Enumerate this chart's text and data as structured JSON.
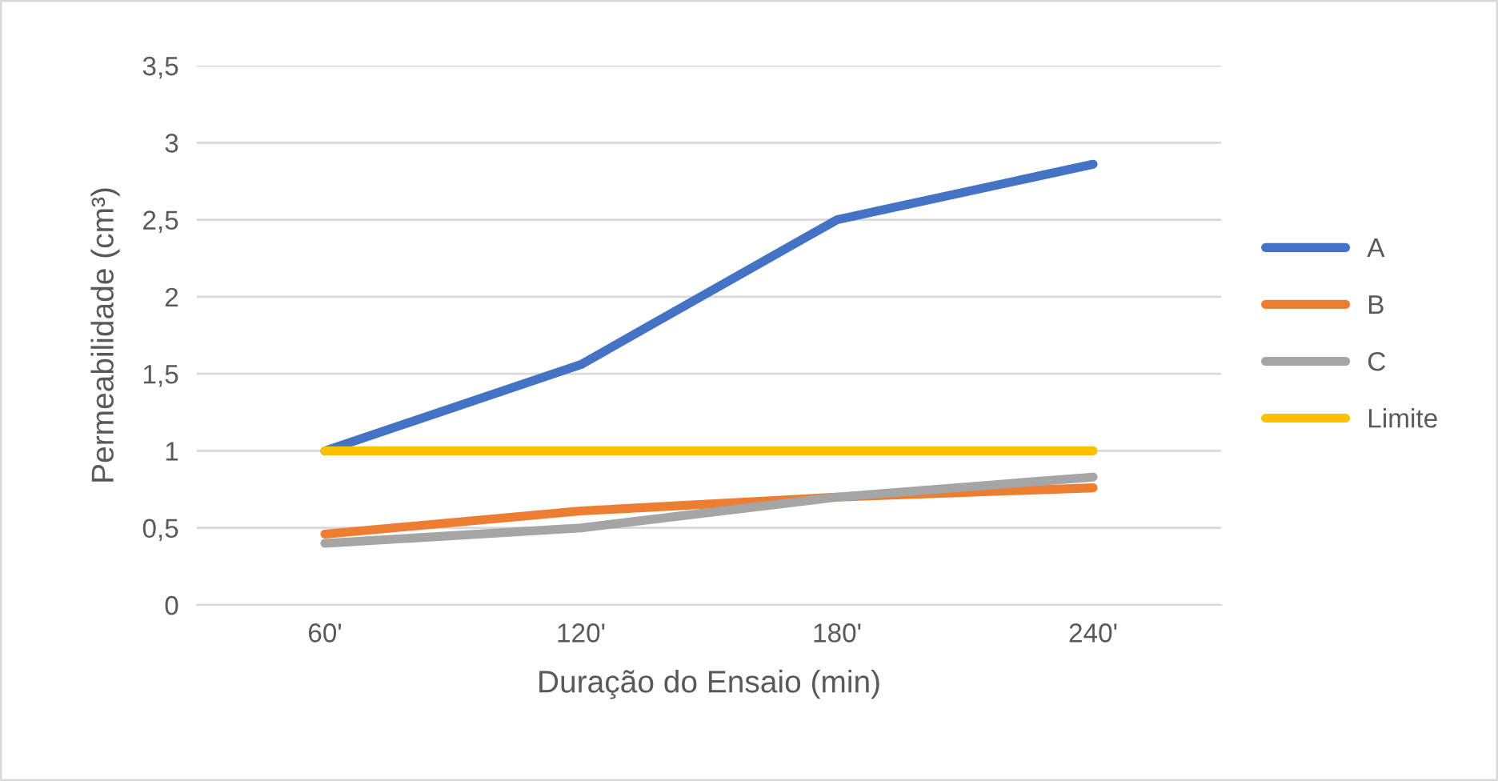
{
  "chart_data": {
    "type": "line",
    "xlabel": "Duração do Ensaio (min)",
    "ylabel": "Permeabilidade (cm³)",
    "categories": [
      "60'",
      "120'",
      "180'",
      "240'"
    ],
    "series": [
      {
        "name": "A",
        "color": "#4472c4",
        "values": [
          1.0,
          1.56,
          2.5,
          2.86
        ]
      },
      {
        "name": "B",
        "color": "#ed7d31",
        "values": [
          0.46,
          0.61,
          0.7,
          0.76
        ]
      },
      {
        "name": "C",
        "color": "#a5a5a5",
        "values": [
          0.4,
          0.5,
          0.7,
          0.83
        ]
      },
      {
        "name": "Limite",
        "color": "#ffc000",
        "values": [
          1.0,
          1.0,
          1.0,
          1.0
        ]
      }
    ],
    "ylim": [
      0,
      3.5
    ],
    "yticks": [
      {
        "value": 0,
        "label": "0"
      },
      {
        "value": 0.5,
        "label": "0,5"
      },
      {
        "value": 1,
        "label": "1"
      },
      {
        "value": 1.5,
        "label": "1,5"
      },
      {
        "value": 2,
        "label": "2"
      },
      {
        "value": 2.5,
        "label": "2,5"
      },
      {
        "value": 3,
        "label": "3"
      },
      {
        "value": 3.5,
        "label": "3,5"
      }
    ],
    "grid": "y",
    "legend": "right",
    "marker": "none",
    "line_style": "solid"
  }
}
